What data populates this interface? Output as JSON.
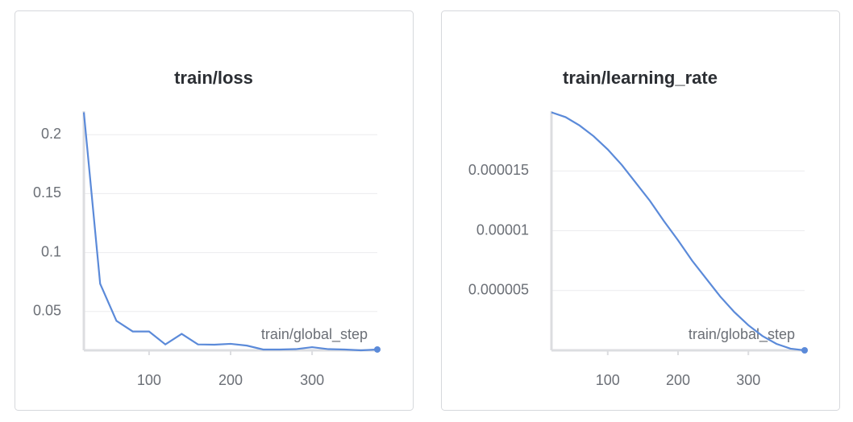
{
  "chart_data": [
    {
      "type": "line",
      "title": "train/loss",
      "x_label": "train/global_step",
      "x": [
        20,
        40,
        60,
        80,
        100,
        120,
        140,
        160,
        180,
        200,
        220,
        240,
        260,
        280,
        300,
        320,
        340,
        360,
        380
      ],
      "values": [
        0.219,
        0.0735,
        0.042,
        0.033,
        0.033,
        0.022,
        0.031,
        0.022,
        0.0218,
        0.0225,
        0.021,
        0.0177,
        0.0177,
        0.018,
        0.0197,
        0.018,
        0.0177,
        0.017,
        0.0177
      ],
      "color": "#5b8ad9",
      "xlim": [
        20,
        380
      ],
      "ylim": [
        0.017,
        0.22
      ],
      "xticks": [
        100,
        200,
        300
      ],
      "yticks": [
        0.05,
        0.1,
        0.15,
        0.2
      ],
      "grid": true
    },
    {
      "type": "line",
      "title": "train/learning_rate",
      "x_label": "train/global_step",
      "x": [
        20,
        40,
        60,
        80,
        100,
        120,
        140,
        160,
        180,
        200,
        220,
        240,
        260,
        280,
        300,
        320,
        340,
        360,
        380
      ],
      "values": [
        1.99e-05,
        1.95e-05,
        1.88e-05,
        1.79e-05,
        1.68e-05,
        1.55e-05,
        1.4e-05,
        1.25e-05,
        1.08e-05,
        9.2e-06,
        7.5e-06,
        6e-06,
        4.5e-06,
        3.2e-06,
        2.1e-06,
        1.2e-06,
        5.4e-07,
        1.4e-07,
        0
      ],
      "color": "#5b8ad9",
      "xlim": [
        20,
        380
      ],
      "ylim": [
        0,
        2e-05
      ],
      "xticks": [
        100,
        200,
        300
      ],
      "yticks": [
        5e-06,
        1e-05,
        1.5e-05
      ],
      "grid": true
    }
  ]
}
